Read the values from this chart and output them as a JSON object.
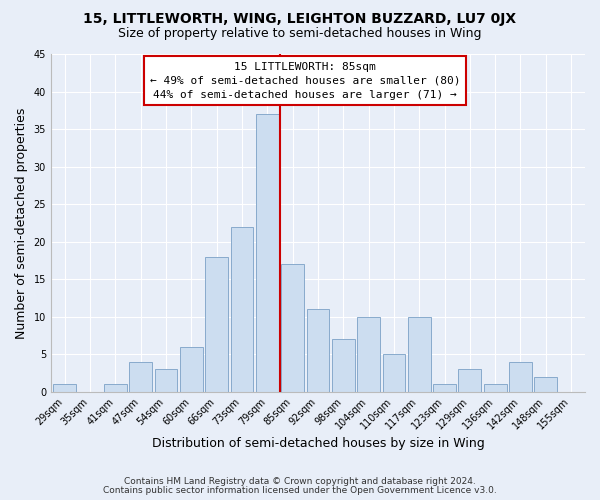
{
  "title": "15, LITTLEWORTH, WING, LEIGHTON BUZZARD, LU7 0JX",
  "subtitle": "Size of property relative to semi-detached houses in Wing",
  "xlabel": "Distribution of semi-detached houses by size in Wing",
  "ylabel": "Number of semi-detached properties",
  "bar_labels": [
    "29sqm",
    "35sqm",
    "41sqm",
    "47sqm",
    "54sqm",
    "60sqm",
    "66sqm",
    "73sqm",
    "79sqm",
    "85sqm",
    "92sqm",
    "98sqm",
    "104sqm",
    "110sqm",
    "117sqm",
    "123sqm",
    "129sqm",
    "136sqm",
    "142sqm",
    "148sqm",
    "155sqm"
  ],
  "bar_values": [
    1,
    0,
    1,
    4,
    3,
    6,
    18,
    22,
    37,
    17,
    11,
    7,
    10,
    5,
    10,
    1,
    3,
    1,
    4,
    2,
    0
  ],
  "bar_color_normal": "#ccddf0",
  "bar_edge_color": "#88aacc",
  "vline_x": 8.5,
  "vline_color": "#cc0000",
  "ylim": [
    0,
    45
  ],
  "yticks": [
    0,
    5,
    10,
    15,
    20,
    25,
    30,
    35,
    40,
    45
  ],
  "annotation_title": "15 LITTLEWORTH: 85sqm",
  "annotation_line1": "← 49% of semi-detached houses are smaller (80)",
  "annotation_line2": "44% of semi-detached houses are larger (71) →",
  "footnote1": "Contains HM Land Registry data © Crown copyright and database right 2024.",
  "footnote2": "Contains public sector information licensed under the Open Government Licence v3.0.",
  "background_color": "#e8eef8",
  "title_fontsize": 10,
  "subtitle_fontsize": 9,
  "axis_label_fontsize": 9,
  "tick_fontsize": 7,
  "annotation_fontsize": 8,
  "footnote_fontsize": 6.5
}
